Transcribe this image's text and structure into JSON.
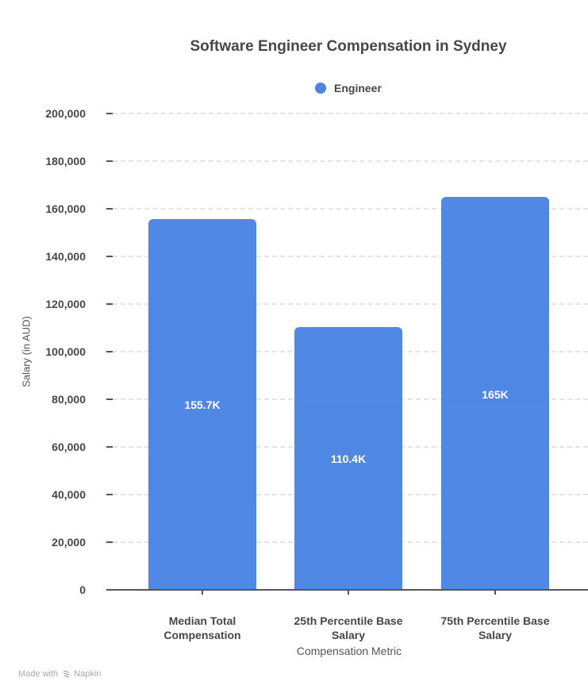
{
  "chart_data": {
    "type": "bar",
    "title": "Software Engineer Compensation in Sydney",
    "xlabel": "Compensation Metric",
    "ylabel": "Salary (in AUD)",
    "categories": [
      "Median Total Compensation",
      "25th Percentile Base Salary",
      "75th Percentile Base Salary"
    ],
    "series": [
      {
        "name": "Engineer",
        "color": "#4a85e4",
        "values": [
          155700,
          110400,
          165000
        ],
        "data_labels": [
          "155.7K",
          "110.4K",
          "165K"
        ]
      }
    ],
    "ylim": [
      0,
      200000
    ],
    "yticks": [
      0,
      20000,
      40000,
      60000,
      80000,
      100000,
      120000,
      140000,
      160000,
      180000,
      200000
    ],
    "ytick_labels": [
      "0",
      "20,000",
      "40,000",
      "60,000",
      "80,000",
      "100,000",
      "120,000",
      "140,000",
      "160,000",
      "180,000",
      "200,000"
    ],
    "grid": true,
    "legend_position": "top"
  },
  "categories_display": [
    [
      "Median Total",
      "Compensation"
    ],
    [
      "25th Percentile Base",
      "Salary"
    ],
    [
      "75th Percentile Base",
      "Salary"
    ]
  ],
  "footer": {
    "made_with": "Made with",
    "brand": "Napkin"
  }
}
